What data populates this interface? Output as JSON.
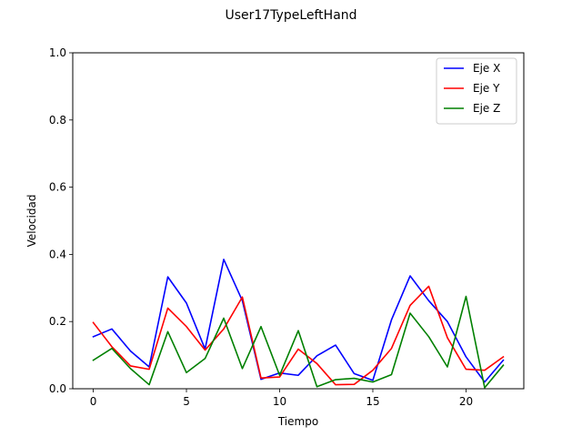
{
  "chart_data": {
    "type": "line",
    "title": "User17TypeLeftHand",
    "xlabel": "Tiempo",
    "ylabel": "Velocidad",
    "xlim": [
      -1.1,
      23.1
    ],
    "ylim": [
      0.0,
      1.0
    ],
    "xticks": [
      0,
      5,
      10,
      15,
      20
    ],
    "yticks": [
      0.0,
      0.2,
      0.4,
      0.6,
      0.8,
      1.0
    ],
    "ytick_labels": [
      "0.0",
      "0.2",
      "0.4",
      "0.6",
      "0.8",
      "1.0"
    ],
    "grid": false,
    "legend_position": "top-right",
    "x": [
      0,
      1,
      2,
      3,
      4,
      5,
      6,
      7,
      8,
      9,
      10,
      11,
      12,
      13,
      14,
      15,
      16,
      17,
      18,
      19,
      20,
      21,
      22
    ],
    "series": [
      {
        "name": "Eje X",
        "color": "#0000ff",
        "values": [
          0.155,
          0.178,
          0.112,
          0.065,
          0.333,
          0.255,
          0.118,
          0.385,
          0.262,
          0.028,
          0.047,
          0.04,
          0.098,
          0.13,
          0.045,
          0.025,
          0.205,
          0.336,
          0.262,
          0.2,
          0.095,
          0.02,
          0.085
        ]
      },
      {
        "name": "Eje Y",
        "color": "#ff0000",
        "values": [
          0.197,
          0.125,
          0.068,
          0.058,
          0.24,
          0.185,
          0.115,
          0.178,
          0.273,
          0.032,
          0.035,
          0.118,
          0.075,
          0.012,
          0.013,
          0.055,
          0.12,
          0.248,
          0.305,
          0.152,
          0.058,
          0.055,
          0.095
        ]
      },
      {
        "name": "Eje Z",
        "color": "#008000",
        "values": [
          0.085,
          0.12,
          0.06,
          0.012,
          0.17,
          0.048,
          0.09,
          0.21,
          0.06,
          0.185,
          0.04,
          0.173,
          0.006,
          0.027,
          0.031,
          0.02,
          0.042,
          0.225,
          0.155,
          0.065,
          0.275,
          0.003,
          0.07
        ]
      }
    ]
  }
}
